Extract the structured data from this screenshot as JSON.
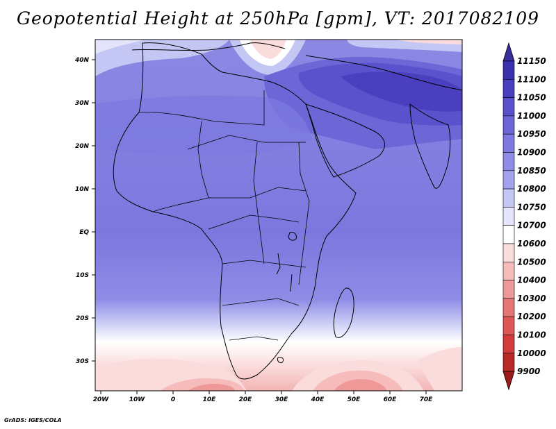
{
  "title": "Geopotential Height at 250hPa [gpm], VT: 2017082109",
  "footer": "GrADS: IGES/COLA",
  "map": {
    "region": "Africa and Middle East",
    "variable": "Geopotential Height",
    "level": "250hPa",
    "units": "gpm",
    "valid_time": "2017082109",
    "lat_labels": [
      "40N",
      "30N",
      "20N",
      "10N",
      "EQ",
      "10S",
      "20S",
      "30S"
    ],
    "lon_labels": [
      "20W",
      "10W",
      "0",
      "10E",
      "20E",
      "30E",
      "40E",
      "50E",
      "60E",
      "70E"
    ]
  },
  "colorbar": {
    "levels": [
      "11150",
      "11100",
      "11050",
      "11000",
      "10950",
      "10900",
      "10850",
      "10800",
      "10750",
      "10700",
      "10600",
      "10500",
      "10400",
      "10300",
      "10200",
      "10100",
      "10000",
      "9900"
    ],
    "colors": [
      "#3a2d9c",
      "#3d32ad",
      "#4a3fbf",
      "#5a52cc",
      "#6c66d6",
      "#7d79e0",
      "#8f8ce6",
      "#a3a2ec",
      "#c4c6f4",
      "#e4e5fb",
      "#ffffff",
      "#fbdcdc",
      "#f6bcbc",
      "#ee9898",
      "#e67676",
      "#de5656",
      "#d23c3c",
      "#b82a2a",
      "#9c1c1c"
    ]
  },
  "colors": {
    "strong_high": "#4a3fbf",
    "mid_high": "#7d79e0",
    "neutral": "#ffffff",
    "low": "#ee9898"
  }
}
